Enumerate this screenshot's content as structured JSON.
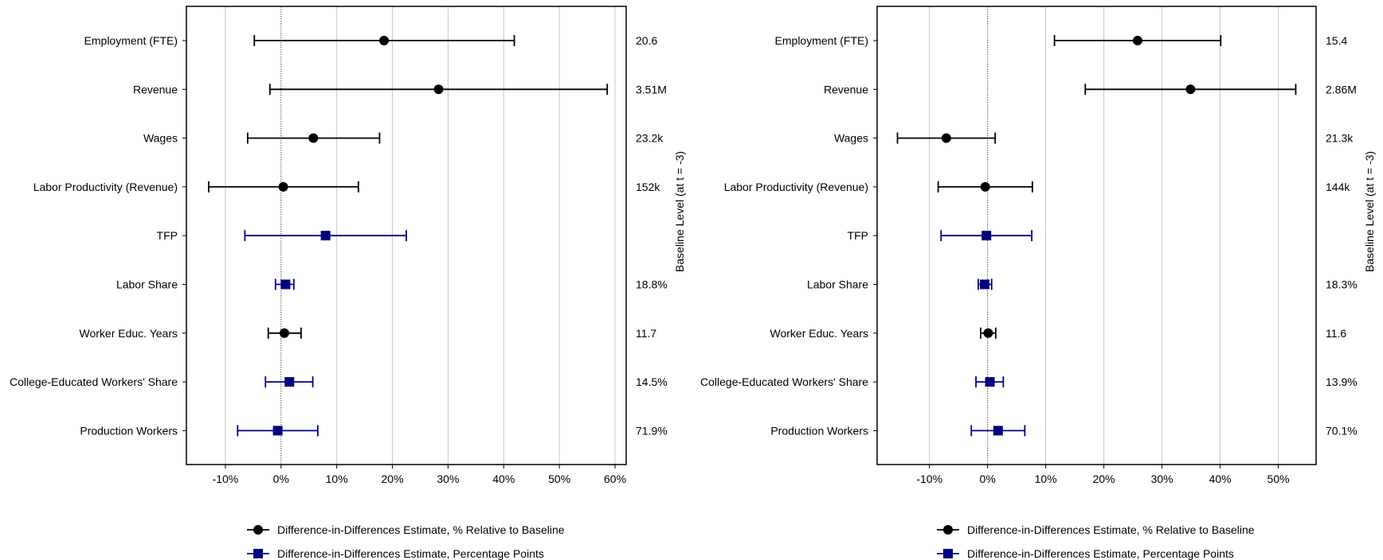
{
  "chart_data": [
    {
      "type": "forest",
      "title": "",
      "xlabel": "",
      "side_label": "Baseline Level (at t = -3)",
      "xlim": [
        -0.17,
        0.62
      ],
      "xticks": [
        {
          "value": -0.1,
          "label": "-10%"
        },
        {
          "value": 0.0,
          "label": "0%"
        },
        {
          "value": 0.1,
          "label": "10%"
        },
        {
          "value": 0.2,
          "label": "20%"
        },
        {
          "value": 0.3,
          "label": "30%"
        },
        {
          "value": 0.4,
          "label": "40%"
        },
        {
          "value": 0.5,
          "label": "50%"
        },
        {
          "value": 0.6,
          "label": "60%"
        }
      ],
      "rows": [
        {
          "label": "Employment (FTE)",
          "estimate": 0.185,
          "lower": -0.048,
          "upper": 0.419,
          "kind": "percent",
          "baseline": "20.6"
        },
        {
          "label": "Revenue",
          "estimate": 0.283,
          "lower": -0.02,
          "upper": 0.586,
          "kind": "percent",
          "baseline": "3.51M"
        },
        {
          "label": "Wages",
          "estimate": 0.058,
          "lower": -0.06,
          "upper": 0.177,
          "kind": "percent",
          "baseline": "23.2k"
        },
        {
          "label": "Labor Productivity (Revenue)",
          "estimate": 0.004,
          "lower": -0.13,
          "upper": 0.139,
          "kind": "percent",
          "baseline": "152k"
        },
        {
          "label": "TFP",
          "estimate": 0.08,
          "lower": -0.065,
          "upper": 0.225,
          "kind": "pp",
          "baseline": ""
        },
        {
          "label": "Labor Share",
          "estimate": 0.008,
          "lower": -0.01,
          "upper": 0.023,
          "kind": "pp",
          "baseline": "18.8%"
        },
        {
          "label": "Worker Educ. Years",
          "estimate": 0.006,
          "lower": -0.023,
          "upper": 0.036,
          "kind": "percent",
          "baseline": "11.7"
        },
        {
          "label": "College-Educated Workers' Share",
          "estimate": 0.015,
          "lower": -0.028,
          "upper": 0.057,
          "kind": "pp",
          "baseline": "14.5%"
        },
        {
          "label": "Production Workers",
          "estimate": -0.006,
          "lower": -0.078,
          "upper": 0.066,
          "kind": "pp",
          "baseline": "71.9%"
        }
      ]
    },
    {
      "type": "forest",
      "title": "",
      "xlabel": "",
      "side_label": "Baseline Level (at t = -3)",
      "xlim": [
        -0.19,
        0.565
      ],
      "xticks": [
        {
          "value": -0.1,
          "label": "-10%"
        },
        {
          "value": 0.0,
          "label": "0%"
        },
        {
          "value": 0.1,
          "label": "10%"
        },
        {
          "value": 0.2,
          "label": "20%"
        },
        {
          "value": 0.3,
          "label": "30%"
        },
        {
          "value": 0.4,
          "label": "40%"
        },
        {
          "value": 0.5,
          "label": "50%"
        }
      ],
      "rows": [
        {
          "label": "Employment (FTE)",
          "estimate": 0.258,
          "lower": 0.115,
          "upper": 0.401,
          "kind": "percent",
          "baseline": "15.4"
        },
        {
          "label": "Revenue",
          "estimate": 0.349,
          "lower": 0.168,
          "upper": 0.53,
          "kind": "percent",
          "baseline": "2.86M"
        },
        {
          "label": "Wages",
          "estimate": -0.071,
          "lower": -0.155,
          "upper": 0.013,
          "kind": "percent",
          "baseline": "21.3k"
        },
        {
          "label": "Labor Productivity (Revenue)",
          "estimate": -0.004,
          "lower": -0.085,
          "upper": 0.077,
          "kind": "percent",
          "baseline": "144k"
        },
        {
          "label": "TFP",
          "estimate": -0.002,
          "lower": -0.08,
          "upper": 0.076,
          "kind": "pp",
          "baseline": ""
        },
        {
          "label": "Labor Share",
          "estimate": -0.005,
          "lower": -0.016,
          "upper": 0.007,
          "kind": "pp",
          "baseline": "18.3%"
        },
        {
          "label": "Worker Educ. Years",
          "estimate": 0.001,
          "lower": -0.012,
          "upper": 0.014,
          "kind": "percent",
          "baseline": "11.6"
        },
        {
          "label": "College-Educated Workers' Share",
          "estimate": 0.004,
          "lower": -0.02,
          "upper": 0.027,
          "kind": "pp",
          "baseline": "13.9%"
        },
        {
          "label": "Production Workers",
          "estimate": 0.018,
          "lower": -0.028,
          "upper": 0.064,
          "kind": "pp",
          "baseline": "70.1%"
        }
      ]
    }
  ],
  "legend": {
    "items": [
      {
        "label": "Difference-in-Differences Estimate, % Relative to Baseline",
        "marker": "circle",
        "color": "#000000"
      },
      {
        "label": "Difference-in-Differences Estimate, Percentage Points",
        "marker": "square",
        "color": "#000080"
      }
    ]
  },
  "colors": {
    "percent": "#000000",
    "pp": "#000080",
    "grid": "#c8c8c8",
    "zero_line": "#555555"
  }
}
